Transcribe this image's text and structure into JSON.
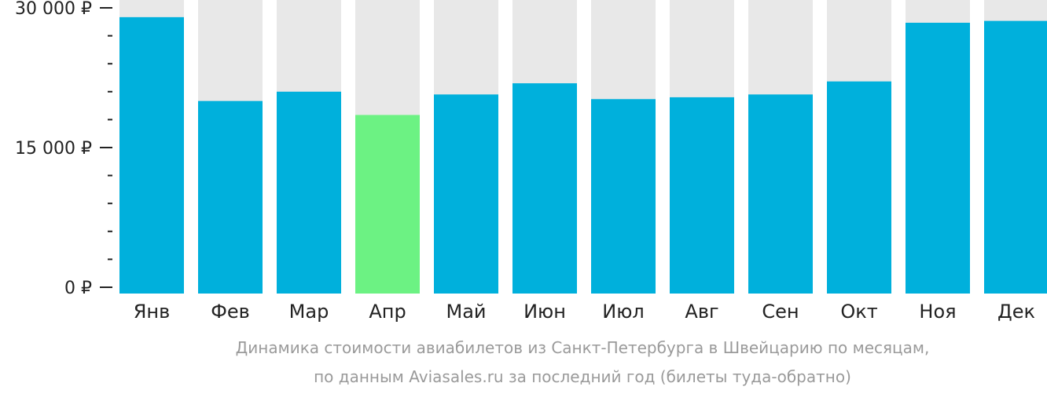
{
  "chart_data": {
    "type": "bar",
    "categories": [
      "Янв",
      "Фев",
      "Мар",
      "Апр",
      "Май",
      "Июн",
      "Июл",
      "Авг",
      "Сен",
      "Окт",
      "Ноя",
      "Дек"
    ],
    "values": [
      29000,
      20000,
      21000,
      18500,
      20700,
      21900,
      20200,
      20400,
      20700,
      22100,
      28400,
      28600
    ],
    "ylim": [
      0,
      31500
    ],
    "yticks": [
      {
        "value": 0,
        "label": "0 ₽"
      },
      {
        "value": 15000,
        "label": "15 000 ₽"
      },
      {
        "value": 30000,
        "label": "30 000 ₽"
      }
    ],
    "minor_tick_step": 3000,
    "highlight_index": 3,
    "colors": {
      "bar": "#00b0dc",
      "highlight": "#6cf283",
      "track": "#e8e8e8"
    },
    "caption_lines": [
      "Динамика стоимости авиабилетов из Санкт-Петербурга в Швейцарию по месяцам,",
      "по данным Aviasales.ru за последний год (билеты туда-обратно)"
    ]
  }
}
